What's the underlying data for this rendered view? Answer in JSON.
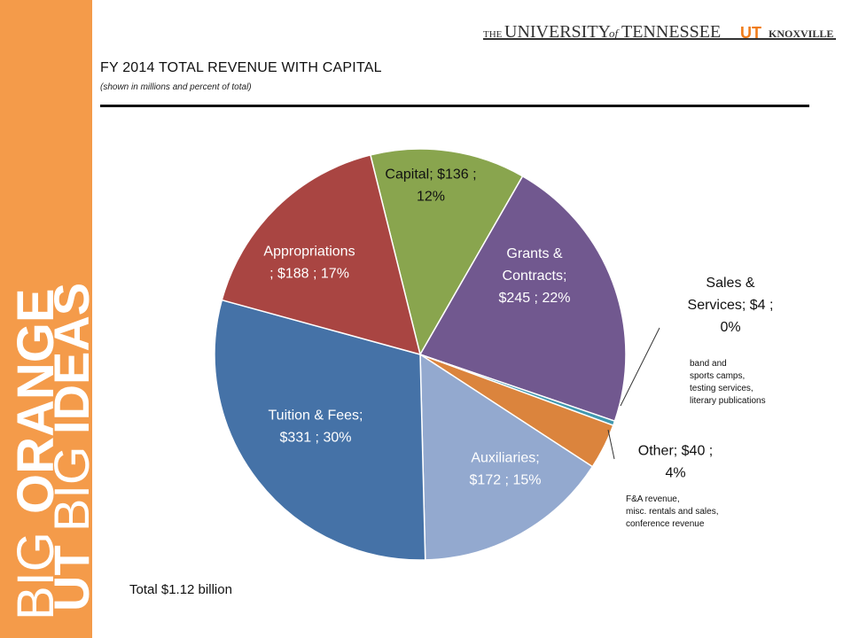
{
  "header": {
    "the": "THE",
    "university": "UNIVERSITY",
    "of": "of",
    "tennessee": "TENNESSEE",
    "ut_mark": "UT",
    "knoxville": "KNOXVILLE"
  },
  "sidebar": {
    "line1_a": "BIG",
    "line1_b": "ORANGE",
    "line2_a": "UT",
    "line2_b": "BIG",
    "line2_c": "IDEAS"
  },
  "colors": {
    "sidebar": "#F49B4A",
    "appropriations": "#A94542",
    "capital": "#89A54E",
    "grants": "#71588F",
    "sales": "#4198AF",
    "other": "#DB843D",
    "auxiliaries": "#93A9CF",
    "tuition": "#4572A7"
  },
  "chart_data": {
    "type": "pie",
    "title": "FY 2014 TOTAL REVENUE WITH CAPITAL",
    "subtitle": "(shown in millions and percent of total)",
    "unit": "millions",
    "slices": [
      {
        "name": "Capital",
        "value": 136,
        "percent": 12,
        "label_line1": "Capital; $136 ;",
        "label_line2": "12%"
      },
      {
        "name": "Grants & Contracts",
        "value": 245,
        "percent": 22,
        "label_line1": "Grants &",
        "label_line2": "Contracts;",
        "label_line3": "$245 ; 22%"
      },
      {
        "name": "Sales & Services",
        "value": 4,
        "percent": 0,
        "label_line1": "Sales &",
        "label_line2": "Services;  $4 ;",
        "label_line3": "0%"
      },
      {
        "name": "Other",
        "value": 40,
        "percent": 4,
        "label_line1": "Other;  $40 ;",
        "label_line2": "4%"
      },
      {
        "name": "Auxiliaries",
        "value": 172,
        "percent": 15,
        "label_line1": "Auxiliaries;",
        "label_line2": "$172 ; 15%"
      },
      {
        "name": "Tuition & Fees",
        "value": 331,
        "percent": 30,
        "label_line1": "Tuition & Fees;",
        "label_line2": "$331 ; 30%"
      },
      {
        "name": "Appropriations",
        "value": 188,
        "percent": 17,
        "label_line1": "Appropriations",
        "label_line2": ";  $188 ; 17%"
      }
    ],
    "total": "Total $1.12 billion"
  },
  "notes": {
    "sales": [
      "band and",
      "sports camps,",
      "testing services,",
      "literary publications"
    ],
    "other": [
      "F&A revenue,",
      "misc. rentals and sales,",
      "conference revenue"
    ]
  }
}
